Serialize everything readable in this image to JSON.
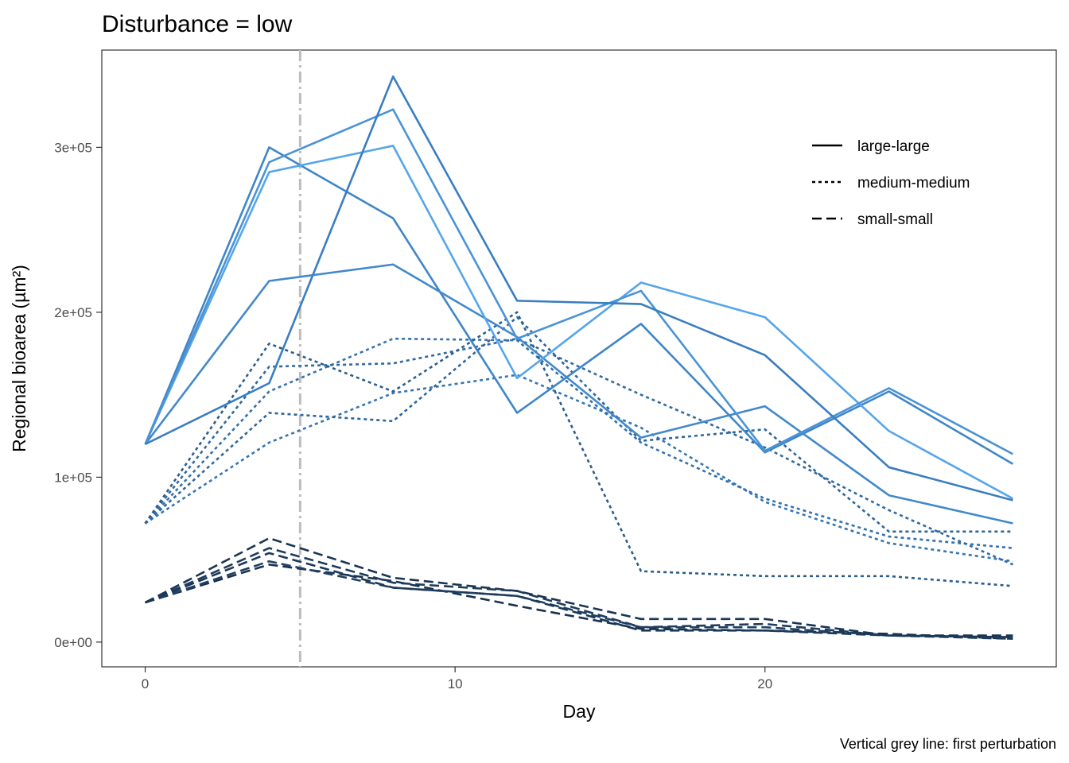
{
  "chart_data": {
    "type": "line",
    "title": "Disturbance = low",
    "xlabel": "Day",
    "ylabel": "Regional bioarea (µm²)",
    "caption": "Vertical grey line: first perturbation",
    "xlim": [
      -1.4,
      29.4
    ],
    "ylim": [
      -15000,
      359000
    ],
    "x_ticks": [
      0,
      10,
      20
    ],
    "x_tick_labels": [
      "0",
      "10",
      "20"
    ],
    "y_ticks": [
      0,
      100000,
      200000,
      300000
    ],
    "y_tick_labels": [
      "0e+00",
      "1e+05",
      "2e+05",
      "3e+05"
    ],
    "grid": false,
    "legend_position": "top-right",
    "reference_line": {
      "x": 5,
      "color": "#bdbdbd"
    },
    "legend": [
      {
        "label": "large-large",
        "dash": "solid"
      },
      {
        "label": "medium-medium",
        "dash": "dotted"
      },
      {
        "label": "small-small",
        "dash": "dashed"
      }
    ],
    "series": [
      {
        "group": "large-large",
        "color": "#3a7dc1",
        "x": [
          0,
          4,
          8,
          12,
          16,
          20,
          24,
          28
        ],
        "y": [
          120000,
          157000,
          343000,
          207000,
          205000,
          174000,
          106000,
          86000
        ]
      },
      {
        "group": "large-large",
        "color": "#4a93d6",
        "x": [
          0,
          4,
          8,
          12,
          16,
          20,
          24,
          28
        ],
        "y": [
          120000,
          291000,
          323000,
          184000,
          213000,
          116000,
          154000,
          114000
        ]
      },
      {
        "group": "large-large",
        "color": "#56a5ea",
        "x": [
          0,
          4,
          8,
          12,
          16,
          20,
          24,
          28
        ],
        "y": [
          120000,
          285000,
          301000,
          160000,
          218000,
          197000,
          128000,
          87000
        ]
      },
      {
        "group": "large-large",
        "color": "#4289cb",
        "x": [
          0,
          4,
          8,
          12,
          16,
          20,
          24,
          28
        ],
        "y": [
          120000,
          219000,
          229000,
          185000,
          124000,
          143000,
          89000,
          72000
        ]
      },
      {
        "group": "large-large",
        "color": "#3f86c8",
        "x": [
          0,
          4,
          8,
          12,
          16,
          20,
          24,
          28
        ],
        "y": [
          120000,
          300000,
          257000,
          139000,
          193000,
          115000,
          152000,
          108000
        ]
      },
      {
        "group": "medium-medium",
        "color": "#2b5d8c",
        "x": [
          0,
          4,
          8,
          12,
          16,
          20,
          24,
          28
        ],
        "y": [
          72000,
          181000,
          152000,
          200000,
          43000,
          40000,
          40000,
          34000
        ]
      },
      {
        "group": "medium-medium",
        "color": "#3069a0",
        "x": [
          0,
          4,
          8,
          12,
          16,
          20,
          24,
          28
        ],
        "y": [
          72000,
          167000,
          169000,
          184000,
          150000,
          118000,
          80000,
          47000
        ]
      },
      {
        "group": "medium-medium",
        "color": "#3471ad",
        "x": [
          0,
          4,
          8,
          12,
          16,
          20,
          24,
          28
        ],
        "y": [
          72000,
          152000,
          184000,
          183000,
          121000,
          87000,
          64000,
          57000
        ]
      },
      {
        "group": "medium-medium",
        "color": "#2f659a",
        "x": [
          0,
          4,
          8,
          12,
          16,
          20,
          24,
          28
        ],
        "y": [
          72000,
          139000,
          134000,
          197000,
          122000,
          129000,
          67000,
          67000
        ]
      },
      {
        "group": "medium-medium",
        "color": "#3575b2",
        "x": [
          0,
          4,
          8,
          12,
          16,
          20,
          24,
          28
        ],
        "y": [
          72000,
          121000,
          151000,
          162000,
          130000,
          85000,
          60000,
          49000
        ]
      },
      {
        "group": "small-small",
        "color": "#1a3553",
        "x": [
          0,
          4,
          8,
          12,
          16,
          20,
          24,
          28
        ],
        "y": [
          24000,
          63000,
          39000,
          31000,
          14000,
          14000,
          4000,
          4000
        ]
      },
      {
        "group": "small-small",
        "color": "#1e3c5d",
        "x": [
          0,
          4,
          8,
          12,
          16,
          20,
          24,
          28
        ],
        "y": [
          24000,
          57000,
          36000,
          31000,
          9000,
          11000,
          4000,
          2000
        ]
      },
      {
        "group": "small-small",
        "color": "#1c3858",
        "x": [
          0,
          4,
          8,
          12,
          16,
          20,
          24,
          28
        ],
        "y": [
          24000,
          54000,
          33000,
          28000,
          7000,
          7000,
          4000,
          3000
        ]
      },
      {
        "group": "small-small",
        "color": "#204163",
        "x": [
          0,
          4,
          8,
          12,
          16,
          20,
          24,
          28
        ],
        "y": [
          24000,
          49000,
          33000,
          28000,
          9000,
          9000,
          4000,
          3000
        ]
      },
      {
        "group": "small-small",
        "color": "#17314e",
        "x": [
          0,
          4,
          8,
          12,
          16,
          20,
          24,
          28
        ],
        "y": [
          24000,
          47000,
          37000,
          22000,
          8000,
          7000,
          5000,
          2000
        ]
      }
    ]
  }
}
